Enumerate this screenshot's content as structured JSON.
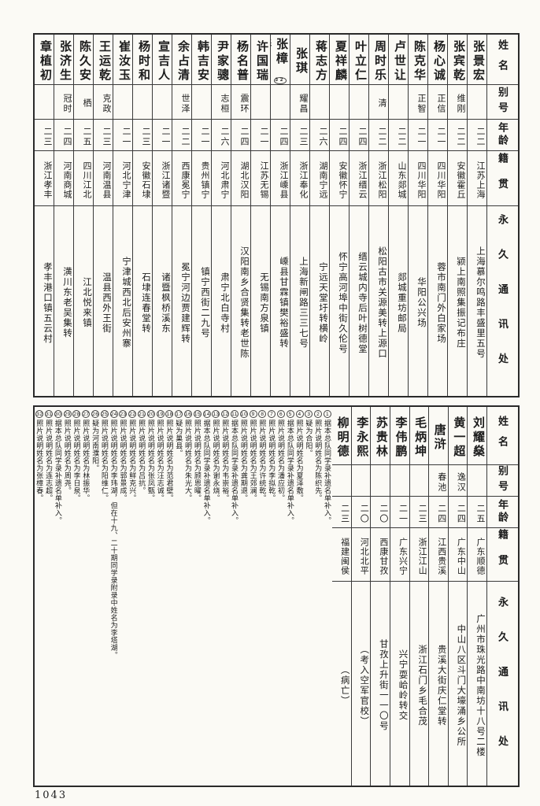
{
  "page_number": "1043",
  "row_headers": {
    "name": "姓名",
    "alias": "别号",
    "age": "年龄",
    "native": "籍贯",
    "address": "永久通讯处"
  },
  "top_table": {
    "entries": [
      {
        "name": "张景宏",
        "mark": "",
        "alias": "",
        "age": "二二",
        "native": "江苏上海",
        "address": "上海慕尔鸣路丰盛里五号"
      },
      {
        "name": "张宾乾",
        "mark": "",
        "alias": "维刚",
        "age": "二二",
        "native": "安徽霍丘",
        "address": "颍上南照集振记布庄"
      },
      {
        "name": "杨心诚",
        "mark": "",
        "alias": "正信",
        "age": "二一",
        "native": "四川华阳",
        "address": "蓉市南门外白家场"
      },
      {
        "name": "陈克华",
        "mark": "",
        "alias": "正智",
        "age": "二一",
        "native": "四川华阳",
        "address": "华阳公兴场"
      },
      {
        "name": "卢世让",
        "mark": "",
        "alias": "",
        "age": "二二",
        "native": "山东郯城",
        "address": "郯城重坊邮局"
      },
      {
        "name": "周时乐",
        "mark": "",
        "alias": "清",
        "age": "二二",
        "native": "浙江松阳",
        "address": "松阳古市关源美转上源口"
      },
      {
        "name": "叶立仁",
        "mark": "",
        "alias": "",
        "age": "二四",
        "native": "浙江缙云",
        "address": "缙云城内寺后叶树德堂"
      },
      {
        "name": "夏祥麟",
        "mark": "",
        "alias": "",
        "age": "二四",
        "native": "安徽怀宁",
        "address": "怀宁高河埠中街久伦号"
      },
      {
        "name": "蒋志方",
        "mark": "",
        "alias": "",
        "age": "二六",
        "native": "湖南宁远",
        "address": "宁远天堂圩转横岭"
      },
      {
        "name": "张琪",
        "mark": "",
        "alias": "耀昌",
        "age": "二三",
        "native": "浙江奉化",
        "address": "上海新闸路三三七号"
      },
      {
        "name": "张樟椿",
        "mark": "32",
        "alias": "",
        "age": "二四",
        "native": "浙江嵊县",
        "address": "嵊县甘霖镇樊裕盛转"
      },
      {
        "name": "许国瑞",
        "mark": "",
        "alias": "",
        "age": "二一",
        "native": "江苏无锡",
        "address": "无锡南方泉镇"
      },
      {
        "name": "杨名普",
        "mark": "",
        "alias": "震环",
        "age": "二四",
        "native": "湖北汉阳",
        "address": "汉阳南乡合贤集转老世陈"
      },
      {
        "name": "尹家骢",
        "mark": "",
        "alias": "志桓",
        "age": "二六",
        "native": "河北肃宁",
        "address": "肃宁北白寺村"
      },
      {
        "name": "韩吉安",
        "mark": "",
        "alias": "",
        "age": "二一",
        "native": "贵州镇宁",
        "address": "镇宁西街二九号"
      },
      {
        "name": "余占清",
        "mark": "",
        "alias": "世泽",
        "age": "二二",
        "native": "西康冕宁",
        "address": "冕宁河边贾建辉转"
      },
      {
        "name": "宣吉人",
        "mark": "",
        "alias": "",
        "age": "二一",
        "native": "浙江诸暨",
        "address": "诸暨枫桥溪东"
      },
      {
        "name": "杨时和",
        "mark": "",
        "alias": "",
        "age": "二三",
        "native": "安徽石埭",
        "address": "石埭连春堂转"
      },
      {
        "name": "崔汝玉",
        "mark": "",
        "alias": "",
        "age": "二一",
        "native": "河北宁津",
        "address": "宁津城西北后安州寨"
      },
      {
        "name": "王运乾",
        "mark": "",
        "alias": "克政",
        "age": "二三",
        "native": "河南温县",
        "address": "温县西外王街"
      },
      {
        "name": "陈久安",
        "mark": "",
        "alias": "栖",
        "age": "二五",
        "native": "四川江北",
        "address": "江北悦来镇"
      },
      {
        "name": "张济生",
        "mark": "",
        "alias": "冠时",
        "age": "二四",
        "native": "河南商城",
        "address": "潢川东老吴集转"
      },
      {
        "name": "章植初",
        "mark": "",
        "alias": "",
        "age": "二三",
        "native": "浙江孝丰",
        "address": "孝丰港口镇五云村"
      }
    ]
  },
  "bottom_table": {
    "entries": [
      {
        "name": "刘耀燊",
        "mark": "",
        "alias": "",
        "age": "二五",
        "native": "广东顺德",
        "address": "广州市珠光路中南坊十八号二楼"
      },
      {
        "name": "黄一超",
        "mark": "",
        "alias": "逸汉",
        "age": "二四",
        "native": "广东中山",
        "address": "中山八区斗门大壕涌乡公所"
      },
      {
        "name": "唐浒",
        "mark": "",
        "alias": "春池",
        "age": "二四",
        "native": "江西贵溪",
        "address": "贵溪大街庆仁堂转"
      },
      {
        "name": "毛炳坤",
        "mark": "",
        "alias": "",
        "age": "二三",
        "native": "浙江江山",
        "address": "浙江石门乡毛合茂"
      },
      {
        "name": "李伟鹏",
        "mark": "",
        "alias": "",
        "age": "二一",
        "native": "广东兴宁",
        "address": "兴宁耍峆岭转交"
      },
      {
        "name": "苏贵林",
        "mark": "",
        "alias": "",
        "age": "二〇",
        "native": "西康甘孜",
        "address": "甘孜上升街一一〇号"
      },
      {
        "name": "李永熙",
        "mark": "",
        "alias": "",
        "age": "二〇",
        "native": "河北北平",
        "address": "（考入空军官校）"
      },
      {
        "name": "柳明德",
        "mark": "",
        "alias": "",
        "age": "二三",
        "native": "福建闽侯",
        "address": "（病亡）"
      }
    ]
  },
  "notes": {
    "items": [
      {
        "num": "1",
        "text": "据本总队同学录补遗名单补入。"
      },
      {
        "num": "2",
        "text": "照片说明姓名为陈织先。"
      },
      {
        "num": "3",
        "text": "疑为合阳。"
      },
      {
        "num": "4",
        "text": "照片说明姓名为夏泽敷。"
      },
      {
        "num": "5",
        "text": "据本总队同学录补遗名单补入。"
      },
      {
        "num": "6",
        "text": "照片说明姓名为潘应初。"
      },
      {
        "num": "7",
        "text": "照片说明姓名为李拟乾。"
      },
      {
        "num": "8",
        "text": "照片说明姓名为许统乾。"
      },
      {
        "num": "9",
        "text": "照片说明姓名为王郊澜。"
      },
      {
        "num": "10",
        "text": "照片说明姓名为龚期退。"
      },
      {
        "num": "11",
        "text": "据本总队同学录补遗名单补入。"
      },
      {
        "num": "12",
        "text": "照片说明姓名为韦崇裕。"
      },
      {
        "num": "13",
        "text": "照片说明姓名为谢永烧。"
      },
      {
        "num": "14",
        "text": "据本总队同学录补遗名单补入。"
      },
      {
        "num": "15",
        "text": "照片说明姓名为顾恩曜。"
      },
      {
        "num": "16",
        "text": "照片说明姓名为朱光大。"
      },
      {
        "num": "17",
        "text": "疑为巢县。"
      },
      {
        "num": "18",
        "text": "照片说明姓名为范君壁。"
      },
      {
        "num": "19",
        "text": "照片说明姓名为汪志诚。"
      },
      {
        "num": "20",
        "text": "照片说明姓名为张凤甄。"
      },
      {
        "num": "21",
        "text": "照片说明姓名为吕抗。"
      },
      {
        "num": "22",
        "text": "照片说明姓名为鲜克兴。"
      },
      {
        "num": "23",
        "text": "照片说明姓名为郭景成。"
      },
      {
        "num": "24",
        "text": "照片说明姓名为李玮湖，但在十九、二十期同学录附录中姓名为李塔湖。"
      },
      {
        "num": "25",
        "text": "照片说明姓名为阳维仁。"
      },
      {
        "num": "26",
        "text": "疑为河南濮阳。"
      },
      {
        "num": "27",
        "text": "照片说明姓名为林振华。"
      },
      {
        "num": "28",
        "text": "照片说明姓名为李日泉。"
      },
      {
        "num": "29",
        "text": "照片说明姓名为周尧。"
      },
      {
        "num": "30",
        "text": "据本总队同学录补遗名单补入。"
      },
      {
        "num": "31",
        "text": "照片说明姓名为连志超。"
      },
      {
        "num": "32",
        "text": "照片说明姓名为张樟春。"
      }
    ]
  }
}
